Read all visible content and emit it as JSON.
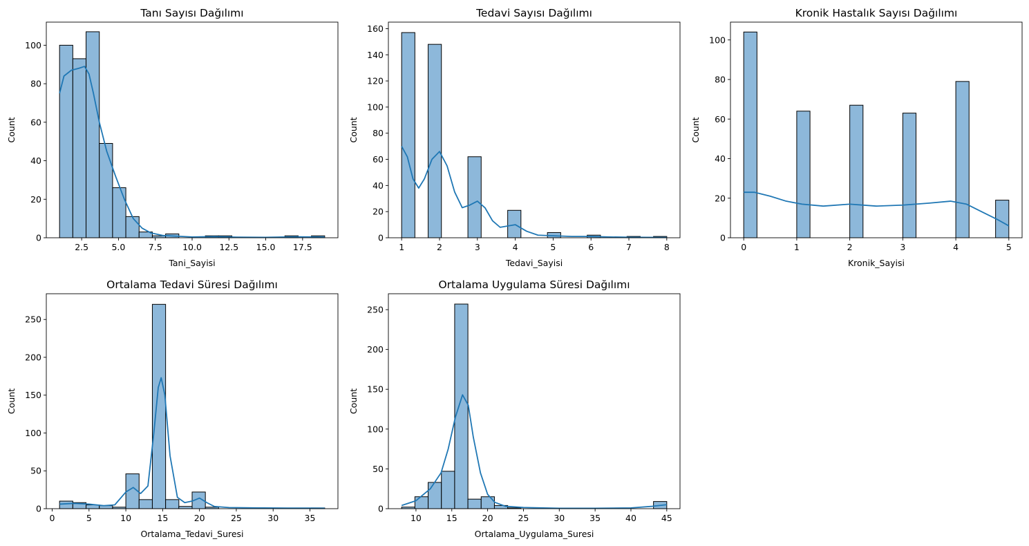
{
  "chart_data": [
    {
      "type": "bar",
      "subtype": "histogram-with-kde",
      "title": "Tanı Sayısı Dağılımı",
      "xlabel": "Tani_Sayisi",
      "ylabel": "Count",
      "xlim": [
        0.1,
        19.9
      ],
      "ylim": [
        0,
        112
      ],
      "xticks": [
        2.5,
        5.0,
        7.5,
        10.0,
        12.5,
        15.0,
        17.5
      ],
      "xtick_labels": [
        "2.5",
        "5.0",
        "7.5",
        "10.0",
        "12.5",
        "15.0",
        "17.5"
      ],
      "yticks": [
        0,
        20,
        40,
        60,
        80,
        100
      ],
      "bin_edges": [
        1,
        1.9,
        2.8,
        3.7,
        4.6,
        5.5,
        6.4,
        7.3,
        8.2,
        9.1,
        10,
        10.9,
        11.8,
        12.7,
        13.6,
        14.5,
        15.4,
        16.3,
        17.2,
        18.1,
        19
      ],
      "counts": [
        100,
        93,
        107,
        49,
        26,
        11,
        3,
        1,
        2,
        0,
        0,
        1,
        1,
        0,
        0,
        0,
        0,
        1,
        0,
        1
      ],
      "kde": [
        [
          1,
          75
        ],
        [
          1.3,
          84
        ],
        [
          1.8,
          87
        ],
        [
          2.3,
          88
        ],
        [
          2.7,
          89
        ],
        [
          3.0,
          85
        ],
        [
          3.3,
          75
        ],
        [
          3.7,
          60
        ],
        [
          4.2,
          45
        ],
        [
          4.8,
          32
        ],
        [
          5.4,
          20
        ],
        [
          6.0,
          10
        ],
        [
          6.6,
          5
        ],
        [
          7.2,
          2.5
        ],
        [
          8.0,
          1.2
        ],
        [
          9.0,
          0.8
        ],
        [
          10,
          0.4
        ],
        [
          11.5,
          0.6
        ],
        [
          13,
          0.3
        ],
        [
          15,
          0.2
        ],
        [
          17,
          0.5
        ],
        [
          18.5,
          0.4
        ],
        [
          19,
          0.3
        ]
      ],
      "grid": false,
      "colors": {
        "bar": "#8db8da",
        "edge": "#000000",
        "kde": "#1f77b4"
      }
    },
    {
      "type": "bar",
      "subtype": "histogram-with-kde",
      "title": "Tedavi Sayısı Dağılımı",
      "xlabel": "Tedavi_Sayisi",
      "ylabel": "Count",
      "xlim": [
        0.65,
        8.35
      ],
      "ylim": [
        0,
        165
      ],
      "xticks": [
        1,
        2,
        3,
        4,
        5,
        6,
        7,
        8
      ],
      "xtick_labels": [
        "1",
        "2",
        "3",
        "4",
        "5",
        "6",
        "7",
        "8"
      ],
      "yticks": [
        0,
        20,
        40,
        60,
        80,
        100,
        120,
        140,
        160
      ],
      "bin_edges": [
        1,
        1.35,
        1.7,
        2.05,
        2.4,
        2.75,
        3.1,
        3.45,
        3.8,
        4.15,
        4.5,
        4.85,
        5.2,
        5.55,
        5.9,
        6.25,
        6.6,
        6.95,
        7.3,
        7.65,
        8
      ],
      "counts": [
        157,
        0,
        148,
        0,
        0,
        62,
        0,
        0,
        21,
        0,
        0,
        4,
        0,
        0,
        2,
        0,
        0,
        1,
        0,
        1
      ],
      "kde": [
        [
          1,
          70
        ],
        [
          1.15,
          62
        ],
        [
          1.3,
          45
        ],
        [
          1.45,
          38
        ],
        [
          1.6,
          45
        ],
        [
          1.8,
          60
        ],
        [
          2.0,
          66
        ],
        [
          2.2,
          55
        ],
        [
          2.4,
          35
        ],
        [
          2.6,
          23
        ],
        [
          2.8,
          25
        ],
        [
          3.0,
          28
        ],
        [
          3.2,
          23
        ],
        [
          3.4,
          13
        ],
        [
          3.6,
          8
        ],
        [
          3.8,
          9
        ],
        [
          4.0,
          10
        ],
        [
          4.3,
          5
        ],
        [
          4.6,
          2
        ],
        [
          5.0,
          1.5
        ],
        [
          5.5,
          1
        ],
        [
          6.0,
          1
        ],
        [
          6.5,
          0.6
        ],
        [
          7.0,
          0.4
        ],
        [
          7.5,
          0.3
        ],
        [
          8,
          0.2
        ]
      ],
      "grid": false,
      "colors": {
        "bar": "#8db8da",
        "edge": "#000000",
        "kde": "#1f77b4"
      }
    },
    {
      "type": "bar",
      "subtype": "histogram-with-kde",
      "title": "Kronik Hastalık Sayısı Dağılımı",
      "xlabel": "Kronik_Sayisi",
      "ylabel": "Count",
      "xlim": [
        -0.25,
        5.25
      ],
      "ylim": [
        0,
        109
      ],
      "xticks": [
        0,
        1,
        2,
        3,
        4,
        5
      ],
      "xtick_labels": [
        "0",
        "1",
        "2",
        "3",
        "4",
        "5"
      ],
      "yticks": [
        0,
        20,
        40,
        60,
        80,
        100
      ],
      "bin_edges": [
        0,
        0.25,
        0.5,
        0.75,
        1,
        1.25,
        1.5,
        1.75,
        2,
        2.25,
        2.5,
        2.75,
        3,
        3.25,
        3.5,
        3.75,
        4,
        4.25,
        4.5,
        4.75,
        5
      ],
      "counts": [
        104,
        0,
        0,
        0,
        64,
        0,
        0,
        0,
        67,
        0,
        0,
        0,
        63,
        0,
        0,
        0,
        79,
        0,
        0,
        19
      ],
      "kde": [
        [
          0,
          23
        ],
        [
          0.2,
          23
        ],
        [
          0.5,
          21
        ],
        [
          0.8,
          18.5
        ],
        [
          1.1,
          17
        ],
        [
          1.5,
          16
        ],
        [
          2.0,
          17
        ],
        [
          2.5,
          16
        ],
        [
          3.0,
          16.5
        ],
        [
          3.5,
          17.5
        ],
        [
          3.9,
          18.5
        ],
        [
          4.2,
          17
        ],
        [
          4.5,
          13
        ],
        [
          4.8,
          9
        ],
        [
          5,
          6
        ]
      ],
      "grid": false,
      "colors": {
        "bar": "#8db8da",
        "edge": "#000000",
        "kde": "#1f77b4"
      }
    },
    {
      "type": "bar",
      "subtype": "histogram-with-kde",
      "title": "Ortalama Tedavi Süresi Dağılımı",
      "xlabel": "Ortalama_Tedavi_Suresi",
      "ylabel": "Count",
      "xlim": [
        -0.8,
        38.8
      ],
      "ylim": [
        0,
        284
      ],
      "xticks": [
        0,
        5,
        10,
        15,
        20,
        25,
        30,
        35
      ],
      "xtick_labels": [
        "0",
        "5",
        "10",
        "15",
        "20",
        "25",
        "30",
        "35"
      ],
      "yticks": [
        0,
        50,
        100,
        150,
        200,
        250
      ],
      "bin_edges": [
        1,
        2.8,
        4.6,
        6.4,
        8.2,
        10,
        11.8,
        13.6,
        15.4,
        17.2,
        19,
        20.8,
        22.6,
        24.4,
        26.2,
        28,
        29.8,
        31.6,
        33.4,
        35.2,
        37
      ],
      "counts": [
        10,
        8,
        5,
        4,
        2,
        46,
        12,
        270,
        12,
        3,
        22,
        2,
        0,
        0,
        0,
        0,
        0,
        0,
        0,
        1
      ],
      "kde": [
        [
          1,
          6
        ],
        [
          3,
          7
        ],
        [
          5,
          6
        ],
        [
          7,
          4
        ],
        [
          8.5,
          5
        ],
        [
          10,
          22
        ],
        [
          11,
          28
        ],
        [
          12,
          20
        ],
        [
          13,
          30
        ],
        [
          13.8,
          100
        ],
        [
          14.4,
          160
        ],
        [
          14.8,
          173
        ],
        [
          15.3,
          150
        ],
        [
          16,
          70
        ],
        [
          17,
          15
        ],
        [
          18,
          8
        ],
        [
          19,
          10
        ],
        [
          20,
          14
        ],
        [
          21,
          8
        ],
        [
          22,
          3
        ],
        [
          24,
          1.5
        ],
        [
          28,
          1
        ],
        [
          32,
          0.8
        ],
        [
          35,
          0.8
        ],
        [
          37,
          0.7
        ]
      ],
      "grid": false,
      "colors": {
        "bar": "#8db8da",
        "edge": "#000000",
        "kde": "#1f77b4"
      }
    },
    {
      "type": "bar",
      "subtype": "histogram-with-kde",
      "title": "Ortalama Uygulama Süresi Dağılımı",
      "xlabel": "Ortalama_Uygulama_Suresi",
      "ylabel": "Count",
      "xlim": [
        6.15,
        46.85
      ],
      "ylim": [
        0,
        270
      ],
      "xticks": [
        10,
        15,
        20,
        25,
        30,
        35,
        40,
        45
      ],
      "xtick_labels": [
        "10",
        "15",
        "20",
        "25",
        "30",
        "35",
        "40",
        "45"
      ],
      "yticks": [
        0,
        50,
        100,
        150,
        200,
        250
      ],
      "bin_edges": [
        8,
        9.85,
        11.7,
        13.55,
        15.4,
        17.25,
        19.1,
        20.95,
        22.8,
        24.65,
        26.5,
        28.35,
        30.2,
        32.05,
        33.9,
        35.75,
        37.6,
        39.45,
        41.3,
        43.15,
        45
      ],
      "counts": [
        2,
        15,
        33,
        47,
        257,
        12,
        15,
        4,
        1,
        0,
        0,
        0,
        0,
        0,
        0,
        0,
        0,
        0,
        0,
        9
      ],
      "kde": [
        [
          8,
          4
        ],
        [
          10,
          10
        ],
        [
          12,
          25
        ],
        [
          13.5,
          45
        ],
        [
          14.5,
          75
        ],
        [
          15.5,
          115
        ],
        [
          16.5,
          143
        ],
        [
          17.3,
          130
        ],
        [
          18,
          90
        ],
        [
          19,
          45
        ],
        [
          20,
          18
        ],
        [
          21,
          8
        ],
        [
          22.5,
          3
        ],
        [
          25,
          1.5
        ],
        [
          30,
          0.5
        ],
        [
          35,
          0.5
        ],
        [
          40,
          1
        ],
        [
          43,
          3
        ],
        [
          45,
          5
        ]
      ],
      "grid": false,
      "colors": {
        "bar": "#8db8da",
        "edge": "#000000",
        "kde": "#1f77b4"
      }
    }
  ]
}
